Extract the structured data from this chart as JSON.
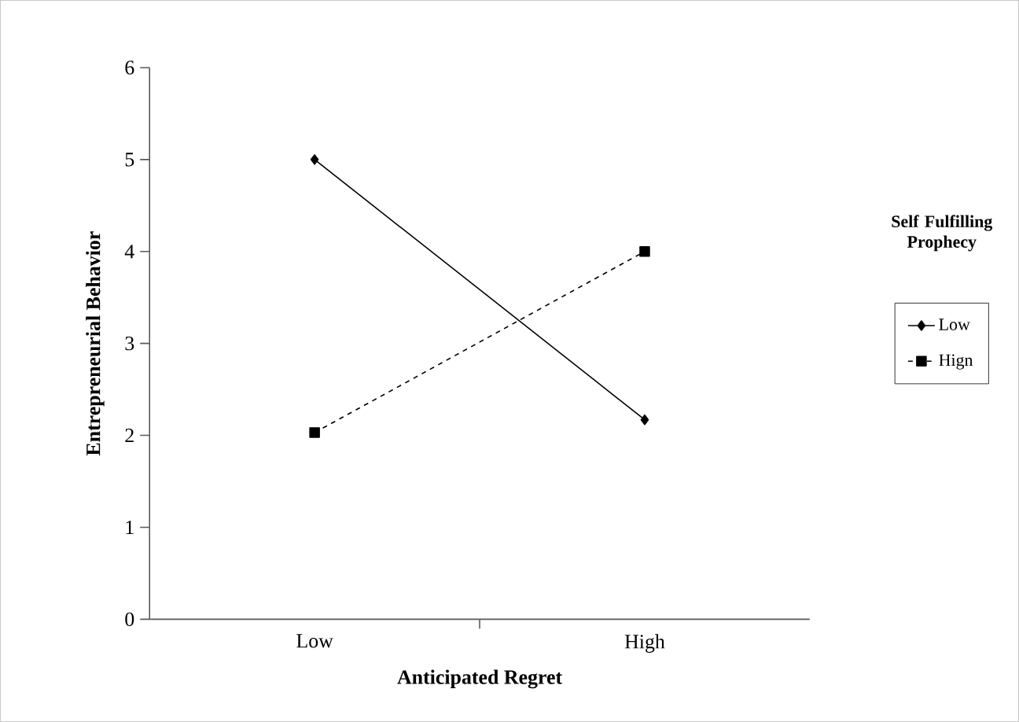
{
  "chart_data": {
    "type": "line",
    "xlabel": "Anticipated  Regret",
    "ylabel": "Entrepreneurial Behavior",
    "legend_title": "Self Fulfilling Prophecy",
    "categories": [
      "Low",
      "High"
    ],
    "series": [
      {
        "name": "Low",
        "color": "#000000",
        "values": [
          5.0,
          2.17
        ],
        "marker": "diamond",
        "line_style": "solid"
      },
      {
        "name": "Hign",
        "color": "#000000",
        "values": [
          2.03,
          4.0
        ],
        "marker": "square",
        "line_style": "dashed"
      }
    ],
    "ylim": [
      0,
      6
    ],
    "yticks": [
      0,
      1,
      2,
      3,
      4,
      5,
      6
    ],
    "grid": false,
    "legend": "right"
  }
}
